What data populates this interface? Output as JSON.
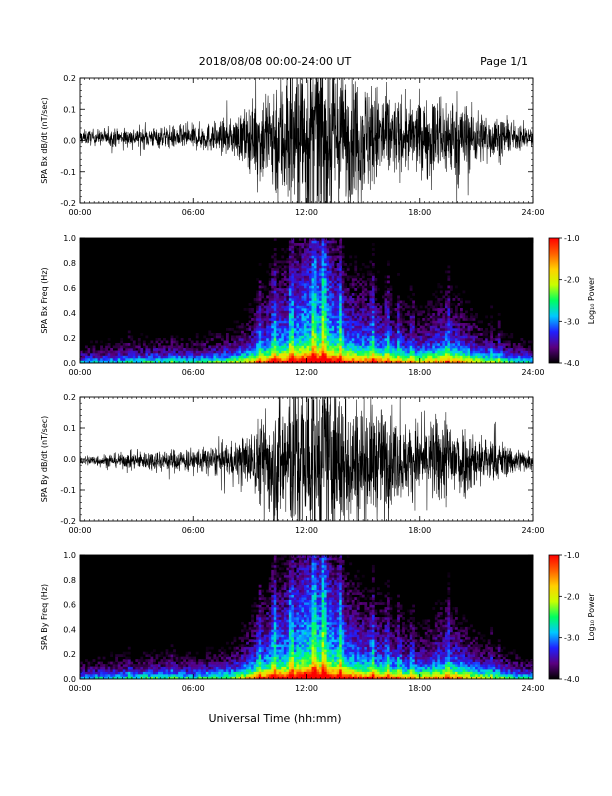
{
  "header": {
    "title": "2018/08/08  00:00-24:00 UT",
    "page_label": "Page 1/1"
  },
  "footer": {
    "xlabel": "Universal Time (hh:mm)"
  },
  "chart_data": [
    {
      "type": "line",
      "ylabel": "SPA Bx dB/dt (nT/sec)",
      "xlim": [
        "00:00",
        "24:00"
      ],
      "ylim": [
        -0.2,
        0.2
      ],
      "x_ticks": [
        "00:00",
        "06:00",
        "12:00",
        "18:00",
        "24:00"
      ],
      "y_ticks": [
        "0.2",
        "0.1",
        "0.0",
        "-0.1",
        "-0.2"
      ],
      "y_tick_values": [
        0.2,
        0.1,
        0.0,
        -0.1,
        -0.2
      ],
      "series_color": "#000000",
      "envelope": {
        "hours": [
          0,
          2,
          4,
          6,
          8,
          9,
          10,
          11,
          12,
          13,
          14,
          15,
          16,
          17,
          18,
          19,
          20,
          21,
          22,
          23,
          24
        ],
        "amplitude": [
          0.02,
          0.025,
          0.03,
          0.035,
          0.05,
          0.09,
          0.16,
          0.22,
          0.26,
          0.26,
          0.19,
          0.17,
          0.14,
          0.1,
          0.1,
          0.12,
          0.12,
          0.08,
          0.06,
          0.04,
          0.03
        ],
        "offset": 0.01
      }
    },
    {
      "type": "heatmap",
      "ylabel": "SPA Bx Freq (Hz)",
      "xlim": [
        "00:00",
        "24:00"
      ],
      "ylim": [
        0.0,
        1.0
      ],
      "x_ticks": [
        "00:00",
        "06:00",
        "12:00",
        "18:00",
        "24:00"
      ],
      "y_ticks": [
        "1.0",
        "0.8",
        "0.6",
        "0.4",
        "0.2",
        "0.0"
      ],
      "y_tick_values": [
        1.0,
        0.8,
        0.6,
        0.4,
        0.2,
        0.0
      ],
      "colorbar": {
        "label": "Log₁₀ Power",
        "range": [
          -4.0,
          -1.0
        ],
        "ticks": [
          "-1.0",
          "-2.0",
          "-3.0",
          "-4.0"
        ],
        "tick_values": [
          -1.0,
          -2.0,
          -3.0,
          -4.0
        ],
        "colors": [
          "#000000",
          "#5a007f",
          "#2020ff",
          "#00c8ff",
          "#00ff60",
          "#c8ff00",
          "#ffd000",
          "#ff6000",
          "#ff0000"
        ]
      },
      "activity": {
        "hours": [
          0,
          2,
          4,
          6,
          8,
          9,
          10,
          11,
          12,
          13,
          14,
          15,
          16,
          17,
          18,
          19,
          20,
          21,
          22,
          23,
          24
        ],
        "level": [
          0.15,
          0.2,
          0.25,
          0.25,
          0.35,
          0.5,
          0.7,
          0.8,
          0.95,
          1.0,
          0.75,
          0.7,
          0.65,
          0.55,
          0.5,
          0.6,
          0.6,
          0.45,
          0.35,
          0.25,
          0.2
        ]
      }
    },
    {
      "type": "line",
      "ylabel": "SPA By dB/dt (nT/sec)",
      "xlim": [
        "00:00",
        "24:00"
      ],
      "ylim": [
        -0.2,
        0.2
      ],
      "x_ticks": [
        "00:00",
        "06:00",
        "12:00",
        "18:00",
        "24:00"
      ],
      "y_ticks": [
        "0.2",
        "0.1",
        "0.0",
        "-0.1",
        "-0.2"
      ],
      "y_tick_values": [
        0.2,
        0.1,
        0.0,
        -0.1,
        -0.2
      ],
      "series_color": "#000000",
      "envelope": {
        "hours": [
          0,
          2,
          4,
          6,
          8,
          9,
          10,
          11,
          12,
          13,
          14,
          15,
          16,
          17,
          18,
          19,
          20,
          21,
          22,
          23,
          24
        ],
        "amplitude": [
          0.015,
          0.02,
          0.03,
          0.035,
          0.05,
          0.08,
          0.16,
          0.22,
          0.26,
          0.26,
          0.2,
          0.17,
          0.15,
          0.11,
          0.1,
          0.13,
          0.12,
          0.08,
          0.06,
          0.04,
          0.025
        ],
        "offset": -0.005
      }
    },
    {
      "type": "heatmap",
      "ylabel": "SPA By Freq (Hz)",
      "xlim": [
        "00:00",
        "24:00"
      ],
      "ylim": [
        0.0,
        1.0
      ],
      "x_ticks": [
        "00:00",
        "06:00",
        "12:00",
        "18:00",
        "24:00"
      ],
      "y_ticks": [
        "1.0",
        "0.8",
        "0.6",
        "0.4",
        "0.2",
        "0.0"
      ],
      "y_tick_values": [
        1.0,
        0.8,
        0.6,
        0.4,
        0.2,
        0.0
      ],
      "colorbar": {
        "label": "Log₁₀ Power",
        "range": [
          -4.0,
          -1.0
        ],
        "ticks": [
          "-1.0",
          "-2.0",
          "-3.0",
          "-4.0"
        ],
        "tick_values": [
          -1.0,
          -2.0,
          -3.0,
          -4.0
        ],
        "colors": [
          "#000000",
          "#5a007f",
          "#2020ff",
          "#00c8ff",
          "#00ff60",
          "#c8ff00",
          "#ffd000",
          "#ff6000",
          "#ff0000"
        ]
      },
      "activity": {
        "hours": [
          0,
          2,
          4,
          6,
          8,
          9,
          10,
          11,
          12,
          13,
          14,
          15,
          16,
          17,
          18,
          19,
          20,
          21,
          22,
          23,
          24
        ],
        "level": [
          0.15,
          0.22,
          0.28,
          0.25,
          0.35,
          0.55,
          0.75,
          0.85,
          1.0,
          1.0,
          0.8,
          0.7,
          0.65,
          0.55,
          0.5,
          0.62,
          0.6,
          0.45,
          0.35,
          0.25,
          0.2
        ]
      }
    }
  ]
}
